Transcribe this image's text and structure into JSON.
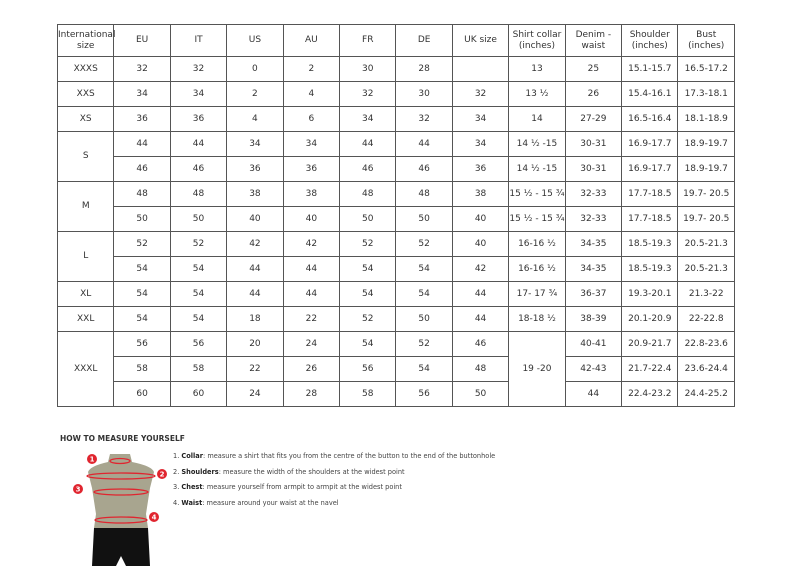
{
  "table": {
    "headers": [
      "International size",
      "EU",
      "IT",
      "US",
      "AU",
      "FR",
      "DE",
      "UK size",
      "Shirt collar (inches)",
      "Denim - waist",
      "Shoulder (inches)",
      "Bust (inches)"
    ],
    "groups": [
      {
        "size": "XXXS",
        "rows": [
          {
            "cells": [
              "32",
              "32",
              "0",
              "2",
              "30",
              "28",
              ""
            ],
            "collar": "13",
            "rest": [
              "25",
              "15.1-15.7",
              "16.5-17.2"
            ]
          }
        ]
      },
      {
        "size": "XXS",
        "rows": [
          {
            "cells": [
              "34",
              "34",
              "2",
              "4",
              "32",
              "30",
              "32"
            ],
            "collar": "13 ½",
            "rest": [
              "26",
              "15.4-16.1",
              "17.3-18.1"
            ]
          }
        ]
      },
      {
        "size": "XS",
        "rows": [
          {
            "cells": [
              "36",
              "36",
              "4",
              "6",
              "34",
              "32",
              "34"
            ],
            "collar": "14",
            "rest": [
              "27-29",
              "16.5-16.4",
              "18.1-18.9"
            ]
          }
        ]
      },
      {
        "size": "S",
        "rows": [
          {
            "cells": [
              "44",
              "44",
              "34",
              "34",
              "44",
              "44",
              "34"
            ],
            "collar": "14 ½ -15",
            "rest": [
              "30-31",
              "16.9-17.7",
              "18.9-19.7"
            ]
          },
          {
            "cells": [
              "46",
              "46",
              "36",
              "36",
              "46",
              "46",
              "36"
            ],
            "collar": "14 ½ -15",
            "rest": [
              "30-31",
              "16.9-17.7",
              "18.9-19.7"
            ]
          }
        ]
      },
      {
        "size": "M",
        "rows": [
          {
            "cells": [
              "48",
              "48",
              "38",
              "38",
              "48",
              "48",
              "38"
            ],
            "collar": "15 ½ - 15 ¾",
            "rest": [
              "32-33",
              "17.7-18.5",
              "19.7- 20.5"
            ]
          },
          {
            "cells": [
              "50",
              "50",
              "40",
              "40",
              "50",
              "50",
              "40"
            ],
            "collar": "15 ½ - 15 ¾",
            "rest": [
              "32-33",
              "17.7-18.5",
              "19.7- 20.5"
            ]
          }
        ]
      },
      {
        "size": "L",
        "rows": [
          {
            "cells": [
              "52",
              "52",
              "42",
              "42",
              "52",
              "52",
              "40"
            ],
            "collar": "16-16 ½",
            "rest": [
              "34-35",
              "18.5-19.3",
              "20.5-21.3"
            ]
          },
          {
            "cells": [
              "54",
              "54",
              "44",
              "44",
              "54",
              "54",
              "42"
            ],
            "collar": "16-16 ½",
            "rest": [
              "34-35",
              "18.5-19.3",
              "20.5-21.3"
            ]
          }
        ]
      },
      {
        "size": "XL",
        "rows": [
          {
            "cells": [
              "54",
              "54",
              "44",
              "44",
              "54",
              "54",
              "44"
            ],
            "collar": "17- 17 ¾",
            "rest": [
              "36-37",
              "19.3-20.1",
              "21.3-22"
            ]
          }
        ]
      },
      {
        "size": "XXL",
        "rows": [
          {
            "cells": [
              "54",
              "54",
              "18",
              "22",
              "52",
              "50",
              "44"
            ],
            "collar": "18-18 ½",
            "rest": [
              "38-39",
              "20.1-20.9",
              "22-22.8"
            ]
          }
        ]
      },
      {
        "size": "XXXL",
        "collar_merged": "19 -20",
        "rows": [
          {
            "cells": [
              "56",
              "56",
              "20",
              "24",
              "54",
              "52",
              "46"
            ],
            "rest": [
              "40-41",
              "20.9-21.7",
              "22.8-23.6"
            ]
          },
          {
            "cells": [
              "58",
              "58",
              "22",
              "26",
              "56",
              "54",
              "48"
            ],
            "rest": [
              "42-43",
              "21.7-22.4",
              "23.6-24.4"
            ]
          },
          {
            "cells": [
              "60",
              "60",
              "24",
              "28",
              "58",
              "56",
              "50"
            ],
            "rest": [
              "44",
              "22.4-23.2",
              "24.4-25.2"
            ]
          }
        ]
      }
    ]
  },
  "guide": {
    "title": "HOW TO MEASURE YOURSELF",
    "markers": [
      "1",
      "2",
      "3",
      "4"
    ],
    "steps": [
      {
        "num": "1.",
        "term": "Collar",
        "text": ": measure a shirt that fits you from the centre of the button to the end of the buttonhole"
      },
      {
        "num": "2.",
        "term": "Shoulders",
        "text": ": measure the width of the shoulders at the widest point"
      },
      {
        "num": "3.",
        "term": "Chest",
        "text": ": measure yourself from armpit to armpit at the widest point"
      },
      {
        "num": "4.",
        "term": "Waist",
        "text": ": measure around your waist at the navel"
      }
    ]
  },
  "colors": {
    "marker": "#e0252f",
    "torso": "#a8a58f",
    "shorts": "#111111"
  }
}
